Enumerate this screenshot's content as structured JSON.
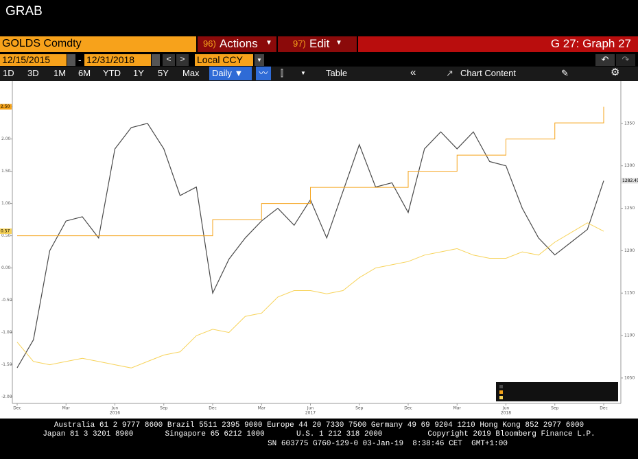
{
  "window_title": "GRAB",
  "toolbar": {
    "security": "GOLDS Comdty",
    "actions_code": "96)",
    "actions": "Actions",
    "edit_code": "97)",
    "edit": "Edit",
    "graph": "G 27: Graph 27",
    "start_date": "12/15/2015",
    "date_sep": "-",
    "end_date": "12/31/2018",
    "currency": "Local CCY",
    "ranges": [
      "1D",
      "3D",
      "1M",
      "6M",
      "YTD",
      "1Y",
      "5Y",
      "Max"
    ],
    "frequency": "Daily ▼",
    "table": "Table",
    "chart_content": "Chart Content"
  },
  "chart_data": {
    "type": "line",
    "x": [
      "2015-12",
      "2016-01",
      "2016-02",
      "2016-03",
      "2016-04",
      "2016-05",
      "2016-06",
      "2016-07",
      "2016-08",
      "2016-09",
      "2016-10",
      "2016-11",
      "2016-12",
      "2017-01",
      "2017-02",
      "2017-03",
      "2017-04",
      "2017-05",
      "2017-06",
      "2017-07",
      "2017-08",
      "2017-09",
      "2017-10",
      "2017-11",
      "2017-12",
      "2018-01",
      "2018-02",
      "2018-03",
      "2018-04",
      "2018-05",
      "2018-06",
      "2018-07",
      "2018-08",
      "2018-09",
      "2018-10",
      "2018-11",
      "2018-12"
    ],
    "xlim": [
      "2015-12",
      "2018-12"
    ],
    "xticks": [
      {
        "value": "2015-12",
        "label": "Dec"
      },
      {
        "value": "2016-03",
        "label": "Mar"
      },
      {
        "value": "2016-06",
        "label": "Jun"
      },
      {
        "value": "2016-09",
        "label": "Sep"
      },
      {
        "value": "2016-12",
        "label": "Dec"
      },
      {
        "value": "2017-03",
        "label": "Mar"
      },
      {
        "value": "2017-06",
        "label": "Jun"
      },
      {
        "value": "2017-09",
        "label": "Sep"
      },
      {
        "value": "2017-12",
        "label": "Dec"
      },
      {
        "value": "2018-03",
        "label": "Mar"
      },
      {
        "value": "2018-06",
        "label": "Jun"
      },
      {
        "value": "2018-09",
        "label": "Sep"
      },
      {
        "value": "2018-12",
        "label": "Dec"
      }
    ],
    "x_year_labels": [
      {
        "value": "2016-06",
        "label": "2016"
      },
      {
        "value": "2017-06",
        "label": "2017"
      },
      {
        "value": "2018-06",
        "label": "2018"
      }
    ],
    "ylim": [
      -2.1,
      2.9
    ],
    "yticks": [
      {
        "value": 2.5,
        "label": "2.50"
      },
      {
        "value": 2,
        "label": "2.00"
      },
      {
        "value": 1.5,
        "label": "1.50"
      },
      {
        "value": 1,
        "label": "1.00"
      },
      {
        "value": 0.5,
        "label": "0.50"
      },
      {
        "value": 0,
        "label": "0.00"
      },
      {
        "value": -0.5,
        "label": "-0.50"
      },
      {
        "value": -1,
        "label": "-1.00"
      },
      {
        "value": -1.5,
        "label": "-1.50"
      },
      {
        "value": -2,
        "label": "-2.00"
      }
    ],
    "y2lim": [
      1020,
      1400
    ],
    "y2ticks": [
      1350,
      1300,
      1250,
      1200,
      1150,
      1100,
      1050
    ],
    "series": [
      {
        "color": "#4a4a4a",
        "axis": "y2",
        "values": [
          1062,
          1095,
          1200,
          1235,
          1240,
          1215,
          1320,
          1345,
          1350,
          1320,
          1265,
          1275,
          1150,
          1190,
          1215,
          1235,
          1250,
          1230,
          1260,
          1215,
          1270,
          1325,
          1275,
          1280,
          1245,
          1320,
          1340,
          1320,
          1340,
          1305,
          1300,
          1250,
          1215,
          1195,
          1210,
          1225,
          1282.45
        ]
      },
      {
        "color": "#f5a31a",
        "step": true,
        "values": [
          0.5,
          0.5,
          0.5,
          0.5,
          0.5,
          0.5,
          0.5,
          0.5,
          0.5,
          0.5,
          0.5,
          0.5,
          0.75,
          0.75,
          0.75,
          1,
          1,
          1,
          1.25,
          1.25,
          1.25,
          1.25,
          1.25,
          1.25,
          1.5,
          1.5,
          1.5,
          1.75,
          1.75,
          1.75,
          2,
          2,
          2,
          2.25,
          2.25,
          2.25,
          2.5
        ],
        "value_labels": [
          null,
          null,
          null,
          null,
          null,
          null,
          null,
          null,
          null,
          null,
          null,
          null,
          null,
          null,
          null,
          null,
          null,
          null,
          null,
          null,
          null,
          null,
          null,
          null,
          null,
          null,
          null,
          null,
          null,
          null,
          null,
          null,
          null,
          null,
          null,
          null,
          "2.50"
        ]
      },
      {
        "color": "#f7d35a",
        "values": [
          -1.15,
          -1.45,
          -1.5,
          -1.45,
          -1.4,
          -1.45,
          -1.5,
          -1.55,
          -1.45,
          -1.35,
          -1.3,
          -1.05,
          -0.95,
          -1,
          -0.75,
          -0.7,
          -0.45,
          -0.35,
          -0.35,
          -0.4,
          -0.35,
          -0.15,
          0,
          0.05,
          0.1,
          0.2,
          0.25,
          0.3,
          0.2,
          0.15,
          0.15,
          0.25,
          0.2,
          0.4,
          0.55,
          0.7,
          0.57
        ]
      }
    ]
  },
  "footer": [
    "Australia 61 2 9777 8600 Brazil 5511 2395 9000 Europe 44 20 7330 7500 Germany 49 69 9204 1210 Hong Kong 852 2977 6000",
    "Japan 81 3 3201 8900       Singapore 65 6212 1000       U.S. 1 212 318 2000          Copyright 2019 Bloomberg Finance L.P.",
    "SN 603775 G760-129-0 03-Jan-19  8:38:46 CET  GMT+1:00"
  ]
}
